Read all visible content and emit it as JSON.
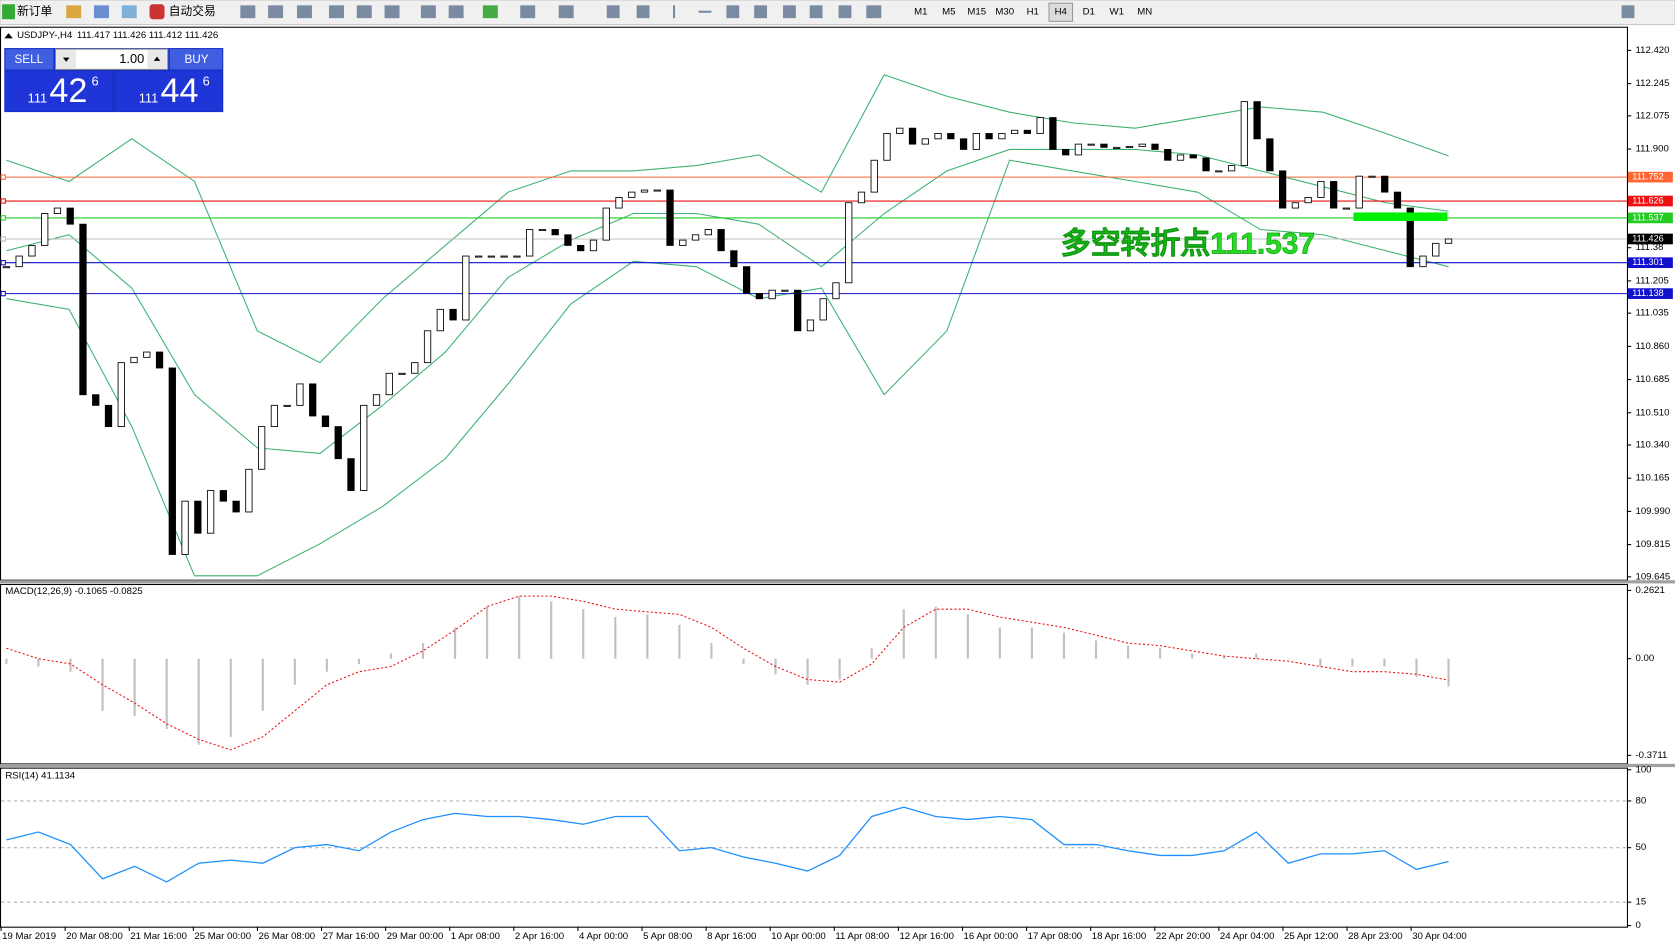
{
  "toolbar": {
    "buttons": [
      "新订单",
      "自动交易"
    ],
    "timeframes": [
      "M1",
      "M5",
      "M15",
      "M30",
      "H1",
      "H4",
      "D1",
      "W1",
      "MN"
    ],
    "active_timeframe": 5
  },
  "trade_panel": {
    "sell": "SELL",
    "buy": "BUY",
    "lot": "1.00",
    "bid": {
      "big": "111",
      "mid": "42",
      "small": "6"
    },
    "ask": {
      "big": "111",
      "mid": "44",
      "small": "6"
    }
  },
  "chart_data": [
    {
      "type": "candlestick",
      "title": "USDJPY-,H4",
      "subtitle": "111.417 111.426 111.412 111.426",
      "values": [
        111.28,
        111.336,
        111.392,
        111.56,
        111.589,
        111.504,
        110.605,
        110.549,
        110.437,
        110.774,
        110.802,
        110.83,
        110.746,
        109.763,
        110.044,
        109.875,
        110.1,
        110.044,
        109.987,
        110.212,
        110.437,
        110.549,
        110.549,
        110.662,
        110.493,
        110.437,
        110.268,
        110.1,
        110.549,
        110.605,
        110.718,
        110.718,
        110.774,
        110.942,
        111.055,
        110.999,
        111.336,
        111.336,
        111.336,
        111.336,
        111.336,
        111.476,
        111.476,
        111.448,
        111.392,
        111.364,
        111.42,
        111.589,
        111.645,
        111.673,
        111.684,
        111.684,
        111.392,
        111.42,
        111.448,
        111.476,
        111.364,
        111.28,
        111.139,
        111.111,
        111.156,
        111.156,
        110.942,
        110.999,
        111.111,
        111.195,
        111.617,
        111.673,
        111.841,
        111.982,
        112.01,
        111.926,
        111.954,
        111.982,
        111.954,
        111.898,
        111.982,
        111.954,
        111.982,
        111.999,
        111.982,
        112.066,
        111.898,
        111.869,
        111.926,
        111.926,
        111.909,
        111.909,
        111.914,
        111.926,
        111.898,
        111.841,
        111.869,
        111.853,
        111.785,
        111.785,
        111.813,
        112.15,
        111.954,
        111.785,
        111.589,
        111.617,
        111.645,
        111.729,
        111.589,
        111.589,
        111.757,
        111.757,
        111.673,
        111.589,
        111.28,
        111.336,
        111.403,
        111.426
      ],
      "bands": [
        {
          "color": "#3cb371",
          "values": [
            111.841,
            111.729,
            111.954,
            111.729,
            110.942,
            110.774,
            111.111,
            111.392,
            111.673,
            111.785,
            111.785,
            111.813,
            111.869,
            111.673,
            112.291,
            112.178,
            112.094,
            112.038,
            112.01,
            112.066,
            112.122,
            112.094,
            111.982,
            111.864
          ]
        },
        {
          "color": "#3cb371",
          "values": [
            111.364,
            111.448,
            111.167,
            110.605,
            110.325,
            110.296,
            110.549,
            110.83,
            111.223,
            111.42,
            111.56,
            111.56,
            111.504,
            111.28,
            111.56,
            111.785,
            111.898,
            111.898,
            111.898,
            111.869,
            111.785,
            111.701,
            111.617,
            111.572
          ]
        },
        {
          "color": "#3cb371",
          "values": [
            111.111,
            111.055,
            110.437,
            109.65,
            109.65,
            109.819,
            110.016,
            110.268,
            110.662,
            111.083,
            111.308,
            111.28,
            111.111,
            111.167,
            110.605,
            110.942,
            111.841,
            111.785,
            111.729,
            111.673,
            111.476,
            111.448,
            111.364,
            111.28
          ]
        }
      ],
      "levels": [
        {
          "value": 111.752,
          "color": "#ff6633"
        },
        {
          "value": 111.626,
          "color": "#ee1111"
        },
        {
          "value": 111.537,
          "color": "#22cc22"
        },
        {
          "value": 111.426,
          "color": "#c0c0c0",
          "label_color": "#000000"
        },
        {
          "value": 111.301,
          "color": "#1111cc"
        },
        {
          "value": 111.138,
          "color": "#1111cc"
        }
      ],
      "annotation": "多空转折点111.537",
      "ylim": [
        109.63,
        112.545
      ],
      "yticks": [
        {
          "value": 112.42,
          "label": "112.420"
        },
        112.245,
        112.075,
        {
          "value": 111.9,
          "label": "111.900"
        },
        111.38,
        {
          "value": 111.205,
          "label": "111.205"
        },
        111.035,
        {
          "value": 110.86,
          "label": "110.860"
        },
        110.685,
        {
          "value": 110.51,
          "label": "110.510"
        },
        {
          "value": 110.34,
          "label": "110.340"
        },
        110.165,
        {
          "value": 109.99,
          "label": "109.990"
        },
        109.815,
        109.645
      ],
      "x_labels": [
        "19 Mar 2019",
        "20 Mar 08:00",
        "21 Mar 16:00",
        "25 Mar 00:00",
        "26 Mar 08:00",
        "27 Mar 16:00",
        "29 Mar 00:00",
        "1 Apr 08:00",
        "2 Apr 16:00",
        "4 Apr 00:00",
        "5 Apr 08:00",
        "8 Apr 16:00",
        "10 Apr 00:00",
        "11 Apr 08:00",
        "12 Apr 16:00",
        "16 Apr 00:00",
        "17 Apr 08:00",
        "18 Apr 16:00",
        "22 Apr 20:00",
        "24 Apr 04:00",
        "25 Apr 12:00",
        "28 Apr 23:00",
        "30 Apr 04:00"
      ]
    },
    {
      "type": "macd",
      "title": "MACD(12,26,9) -0.1065 -0.0825",
      "values": [
        -0.02,
        -0.03,
        -0.05,
        -0.2,
        -0.22,
        -0.27,
        -0.33,
        -0.3,
        -0.2,
        -0.1,
        -0.05,
        -0.02,
        0.02,
        0.06,
        0.12,
        0.2,
        0.24,
        0.22,
        0.19,
        0.16,
        0.17,
        0.13,
        0.06,
        -0.02,
        -0.06,
        -0.1,
        -0.08,
        0.04,
        0.19,
        0.2,
        0.17,
        0.12,
        0.12,
        0.1,
        0.07,
        0.05,
        0.04,
        0.02,
        0.01,
        0.02,
        0.0,
        -0.03,
        -0.03,
        -0.03,
        -0.07,
        -0.1065
      ],
      "signal": {
        "color": "#ee1111",
        "values": [
          0.04,
          0.0,
          -0.02,
          -0.1,
          -0.17,
          -0.25,
          -0.31,
          -0.35,
          -0.3,
          -0.2,
          -0.1,
          -0.05,
          -0.03,
          0.03,
          0.11,
          0.2,
          0.24,
          0.24,
          0.22,
          0.19,
          0.18,
          0.17,
          0.12,
          0.04,
          -0.03,
          -0.08,
          -0.09,
          -0.02,
          0.12,
          0.19,
          0.19,
          0.16,
          0.14,
          0.12,
          0.09,
          0.06,
          0.05,
          0.03,
          0.01,
          0.0,
          -0.01,
          -0.03,
          -0.05,
          -0.05,
          -0.06,
          -0.0825
        ]
      },
      "color": "#c0c0c0",
      "ylim": [
        -0.4016,
        0.2869
      ],
      "yticks": [
        0.2621,
        {
          "value": 0,
          "label": "0.00"
        },
        -0.3711
      ]
    },
    {
      "type": "line",
      "title": "RSI(14) 41.1134",
      "color": "#1e90ff",
      "values": [
        55,
        60,
        52,
        30,
        38,
        28,
        40,
        42,
        40,
        50,
        52,
        48,
        60,
        68,
        72,
        70,
        70,
        68,
        65,
        70,
        70,
        48,
        50,
        44,
        40,
        35,
        45,
        70,
        76,
        70,
        68,
        70,
        68,
        52,
        52,
        48,
        45,
        45,
        48,
        60,
        40,
        46,
        46,
        48,
        36,
        41.1134
      ],
      "ylim": [
        -0.7,
        101.4
      ],
      "yticks": [
        100,
        80,
        50,
        15,
        0
      ],
      "grid": true
    }
  ]
}
